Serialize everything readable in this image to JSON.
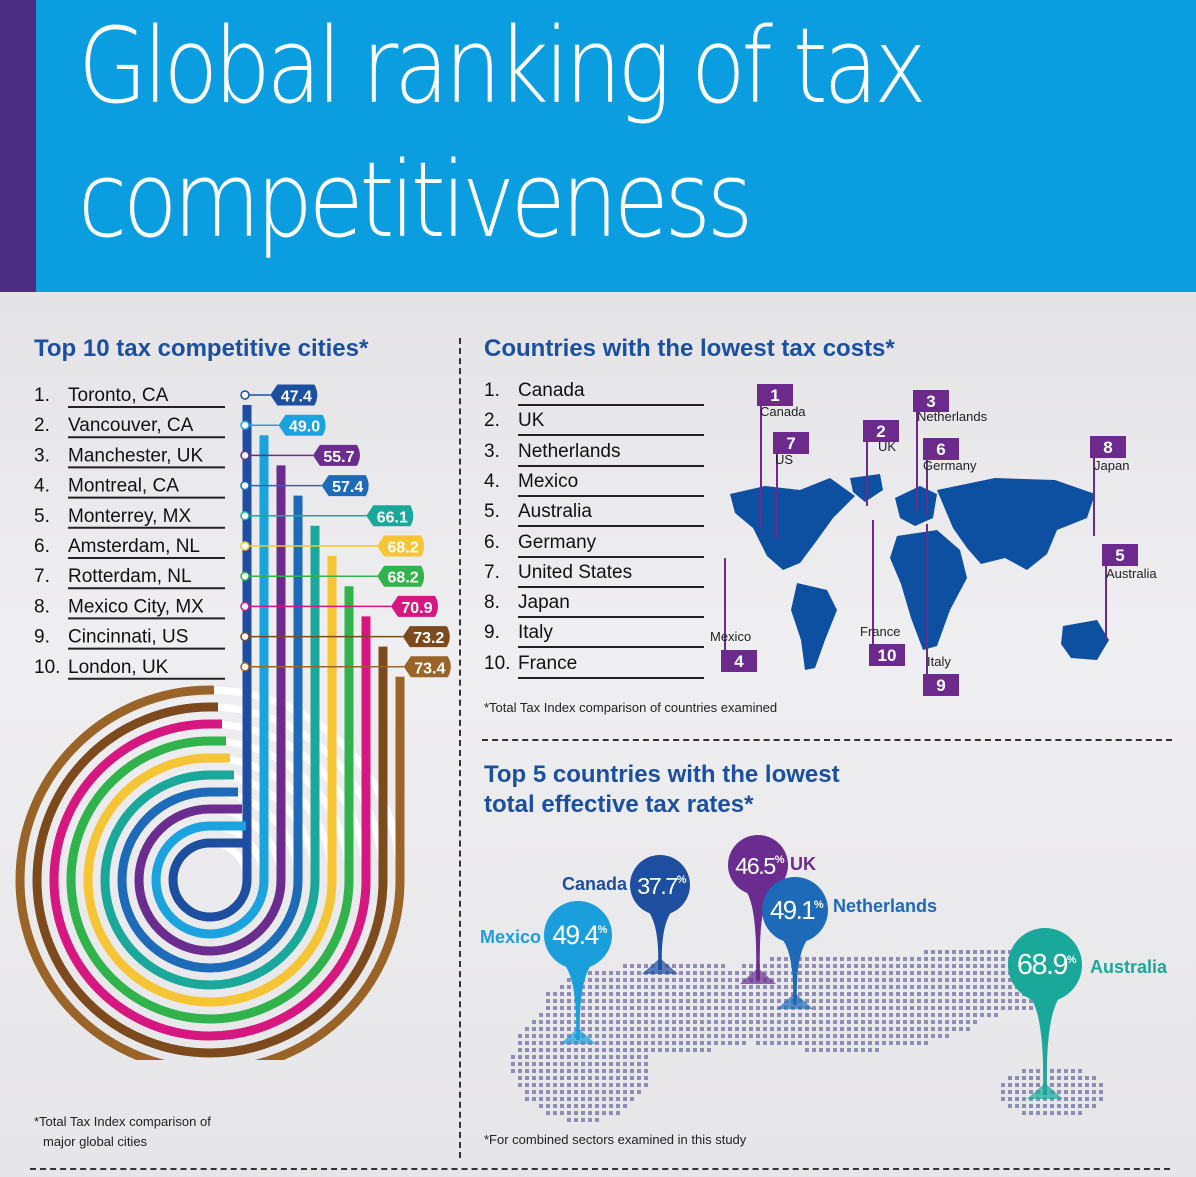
{
  "header": {
    "title_line1": "Global ranking of tax",
    "title_line2": "competitiveness"
  },
  "cities_section": {
    "title": "Top 10 tax competitive cities*",
    "footnote_line1": "*Total Tax Index comparison of",
    "footnote_line2": "major global cities"
  },
  "countries_section": {
    "title": "Countries with the lowest tax costs*",
    "footnote": "*Total Tax Index comparison of countries examined",
    "items": [
      {
        "rank": "1.",
        "name": "Canada"
      },
      {
        "rank": "2.",
        "name": "UK"
      },
      {
        "rank": "3.",
        "name": "Netherlands"
      },
      {
        "rank": "4.",
        "name": "Mexico"
      },
      {
        "rank": "5.",
        "name": "Australia"
      },
      {
        "rank": "6.",
        "name": "Germany"
      },
      {
        "rank": "7.",
        "name": "United States"
      },
      {
        "rank": "8.",
        "name": "Japan"
      },
      {
        "rank": "9.",
        "name": "Italy"
      },
      {
        "rank": "10.",
        "name": "France"
      }
    ],
    "map_markers": [
      {
        "rank": "1",
        "label": "Canada"
      },
      {
        "rank": "2",
        "label": "UK"
      },
      {
        "rank": "3",
        "label": "Netherlands"
      },
      {
        "rank": "4",
        "label": "Mexico"
      },
      {
        "rank": "5",
        "label": "Australia"
      },
      {
        "rank": "6",
        "label": "Germany"
      },
      {
        "rank": "7",
        "label": "US"
      },
      {
        "rank": "8",
        "label": "Japan"
      },
      {
        "rank": "9",
        "label": "Italy"
      },
      {
        "rank": "10",
        "label": "France"
      }
    ]
  },
  "rates_section": {
    "title_line1": "Top 5 countries with the lowest",
    "title_line2": "total effective tax rates*",
    "footnote": "*For combined sectors examined in this study"
  },
  "colors": {
    "header_blue": "#0a9ee0",
    "header_purple": "#4b2d84",
    "title_blue": "#1b4fa0",
    "marker_purple": "#6b2a8c",
    "map_blue": "#0d4fa0"
  },
  "chart_data": [
    {
      "type": "bar",
      "title": "Top 10 tax competitive cities*",
      "categories": [
        "Toronto, CA",
        "Vancouver, CA",
        "Manchester, UK",
        "Montreal, CA",
        "Monterrey, MX",
        "Amsterdam, NL",
        "Rotterdam, NL",
        "Mexico City, MX",
        "Cincinnati, US",
        "London, UK"
      ],
      "ranks": [
        "1.",
        "2.",
        "3.",
        "4.",
        "5.",
        "6.",
        "7.",
        "8.",
        "9.",
        "10."
      ],
      "values": [
        47.4,
        49.0,
        55.7,
        57.4,
        66.1,
        68.2,
        68.2,
        70.9,
        73.2,
        73.4
      ],
      "value_labels": [
        "47.4",
        "49.0",
        "55.7",
        "57.4",
        "66.1",
        "68.2",
        "68.2",
        "70.9",
        "73.2",
        "73.4"
      ],
      "colors": [
        "#1d4ea0",
        "#1aa3de",
        "#6a2c8e",
        "#1d6ab8",
        "#1aa89a",
        "#f6c535",
        "#2fb34a",
        "#d6177f",
        "#7d4a1e",
        "#9a6428"
      ]
    },
    {
      "type": "scatter",
      "title": "Top 5 countries with the lowest total effective tax rates*",
      "unit": "%",
      "series": [
        {
          "name": "Mexico",
          "value": 49.4,
          "label": "49.4",
          "color": "#1a9fdc"
        },
        {
          "name": "Canada",
          "value": 37.7,
          "label": "37.7",
          "color": "#1d4ea0"
        },
        {
          "name": "UK",
          "value": 46.5,
          "label": "46.5",
          "color": "#6a2c8e"
        },
        {
          "name": "Netherlands",
          "value": 49.1,
          "label": "49.1",
          "color": "#1d6ab8"
        },
        {
          "name": "Australia",
          "value": 68.9,
          "label": "68.9",
          "color": "#1aa89a"
        }
      ]
    }
  ]
}
